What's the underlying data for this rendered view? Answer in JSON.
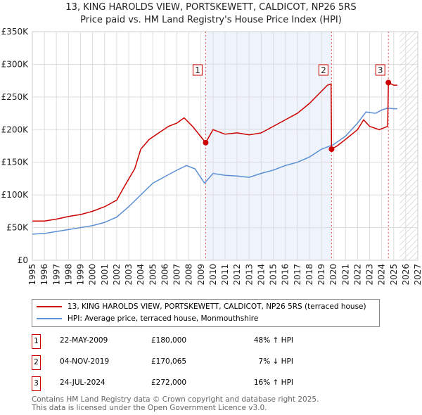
{
  "chart_data": {
    "type": "line",
    "title": "13, KING HAROLDS VIEW, PORTSKEWETT, CALDICOT, NP26 5RS",
    "subtitle": "Price paid vs. HM Land Registry's House Price Index (HPI)",
    "xlim": [
      1995,
      2027
    ],
    "ylim": [
      0,
      350000
    ],
    "yticks": [
      {
        "v": 0,
        "label": "£0"
      },
      {
        "v": 50000,
        "label": "£50K"
      },
      {
        "v": 100000,
        "label": "£100K"
      },
      {
        "v": 150000,
        "label": "£150K"
      },
      {
        "v": 200000,
        "label": "£200K"
      },
      {
        "v": 250000,
        "label": "£250K"
      },
      {
        "v": 300000,
        "label": "£300K"
      },
      {
        "v": 350000,
        "label": "£350K"
      }
    ],
    "xticks": [
      "1995",
      "1996",
      "1997",
      "1998",
      "1999",
      "2000",
      "2001",
      "2002",
      "2003",
      "2004",
      "2005",
      "2006",
      "2007",
      "2008",
      "2009",
      "2010",
      "2011",
      "2012",
      "2013",
      "2014",
      "2015",
      "2016",
      "2017",
      "2018",
      "2019",
      "2020",
      "2021",
      "2022",
      "2023",
      "2024",
      "2025",
      "2026",
      "2027"
    ],
    "shaded_range": [
      2009.39,
      2019.84
    ],
    "hatched_from": 2025.5,
    "series": [
      {
        "name": "13, KING HAROLDS VIEW, PORTSKEWETT, CALDICOT, NP26 5RS (terraced house)",
        "color": "#cc0000",
        "x": [
          1995,
          1996,
          1997,
          1998,
          1999,
          2000,
          2001,
          2002,
          2002.7,
          2003.5,
          2004,
          2004.7,
          2005.5,
          2006.3,
          2007,
          2007.6,
          2008.3,
          2009.39,
          2010,
          2011,
          2012,
          2013,
          2014,
          2015,
          2016,
          2017,
          2018,
          2018.8,
          2019.5,
          2019.8,
          2019.84,
          2020.3,
          2021,
          2022,
          2022.5,
          2023,
          2023.8,
          2024.5,
          2024.56,
          2025,
          2025.3
        ],
        "y": [
          60000,
          60000,
          63000,
          67000,
          70000,
          75000,
          82000,
          92000,
          115000,
          140000,
          170000,
          185000,
          195000,
          205000,
          210000,
          218000,
          205000,
          180000,
          200000,
          193000,
          195000,
          192000,
          195000,
          205000,
          215000,
          225000,
          240000,
          255000,
          268000,
          270000,
          170065,
          175000,
          185000,
          200000,
          215000,
          205000,
          200000,
          205000,
          272000,
          268000,
          268000
        ]
      },
      {
        "name": "HPI: Average price, terraced house, Monmouthshire",
        "color": "#5b8fd5",
        "x": [
          1995,
          1996,
          1997,
          1998,
          1999,
          2000,
          2001,
          2002,
          2003,
          2004,
          2005,
          2006,
          2007,
          2007.8,
          2008.5,
          2009.3,
          2010,
          2011,
          2012,
          2013,
          2014,
          2015,
          2016,
          2017,
          2018,
          2019,
          2020,
          2021,
          2022,
          2022.7,
          2023.5,
          2024,
          2024.5,
          2025,
          2025.3
        ],
        "y": [
          40000,
          41000,
          44000,
          47000,
          50000,
          53000,
          58000,
          66000,
          82000,
          100000,
          118000,
          128000,
          138000,
          145000,
          140000,
          118000,
          133000,
          130000,
          129000,
          127000,
          133000,
          138000,
          145000,
          150000,
          158000,
          170000,
          177000,
          190000,
          210000,
          227000,
          225000,
          230000,
          233000,
          232000,
          232000
        ]
      }
    ],
    "sales": [
      {
        "label": "1",
        "x": 2009.39,
        "y": 180000
      },
      {
        "label": "2",
        "x": 2019.84,
        "y": 170065
      },
      {
        "label": "3",
        "x": 2024.56,
        "y": 272000
      }
    ]
  },
  "legend": {
    "items": [
      "13, KING HAROLDS VIEW, PORTSKEWETT, CALDICOT, NP26 5RS (terraced house)",
      "HPI: Average price, terraced house, Monmouthshire"
    ]
  },
  "table": [
    {
      "num": "1",
      "date": "22-MAY-2009",
      "price": "£180,000",
      "hpi": "48% ↑ HPI"
    },
    {
      "num": "2",
      "date": "04-NOV-2019",
      "price": "£170,065",
      "hpi": "7% ↓ HPI"
    },
    {
      "num": "3",
      "date": "24-JUL-2024",
      "price": "£272,000",
      "hpi": "16% ↑ HPI"
    }
  ],
  "footer": {
    "line1": "Contains HM Land Registry data © Crown copyright and database right 2025.",
    "line2": "This data is licensed under the Open Government Licence v3.0."
  }
}
